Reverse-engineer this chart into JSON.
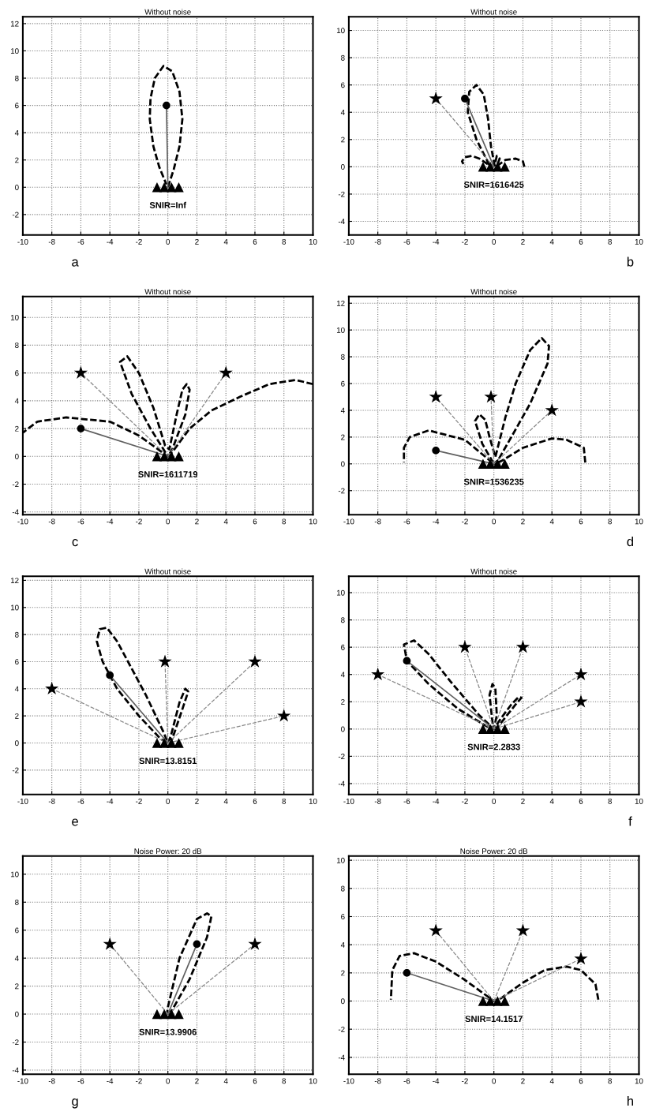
{
  "chart_data": [
    {
      "type": "line",
      "title": "Without noise",
      "annotations": [
        "SNIR=Inf",
        "a"
      ],
      "grid": true,
      "xlim": [
        -10,
        10
      ],
      "ylim": [
        -3.5,
        12.5
      ],
      "xticks": [
        -10,
        -8,
        -6,
        -4,
        -2,
        0,
        2,
        4,
        6,
        8,
        10
      ],
      "yticks": [
        -2,
        0,
        2,
        4,
        6,
        8,
        10,
        12
      ],
      "series": [
        {
          "type": "line",
          "line_style": "dashed",
          "color": "#000000",
          "x": [
            0,
            0.4,
            0.8,
            1.0,
            0.8,
            0.3,
            -0.3,
            -0.9,
            -1.2,
            -1.25,
            -1.0,
            -0.6,
            -0.1
          ],
          "values": [
            0,
            1.3,
            3,
            5,
            7,
            8.5,
            8.9,
            8,
            6.5,
            5,
            3,
            1.5,
            0.2
          ]
        },
        {
          "type": "line",
          "line_style": "solid",
          "color": "#606060",
          "x": [
            0,
            -0.1
          ],
          "values": [
            0,
            6
          ]
        },
        {
          "type": "scatter",
          "marker": "circle",
          "color": "#000000",
          "x": [
            -0.1
          ],
          "values": [
            6
          ]
        },
        {
          "type": "scatter",
          "marker": "triangle",
          "color": "#000000",
          "x": [
            -0.75,
            -0.25,
            0.25,
            0.75
          ],
          "values": [
            0,
            0,
            0,
            0
          ]
        }
      ]
    },
    {
      "type": "line",
      "title": "Without noise",
      "annotations": [
        "SNIR=1616425",
        "b"
      ],
      "grid": true,
      "xlim": [
        -10,
        10
      ],
      "ylim": [
        -5,
        11
      ],
      "xticks": [
        -10,
        -8,
        -6,
        -4,
        -2,
        0,
        2,
        4,
        6,
        8,
        10
      ],
      "yticks": [
        -4,
        -2,
        0,
        2,
        4,
        6,
        8,
        10
      ],
      "series": [
        {
          "type": "line",
          "line_style": "dashed",
          "color": "#000000",
          "x": [
            2.1,
            2.0,
            1.5,
            0.8,
            0.2,
            0.4,
            0.2,
            0.05,
            -0.2,
            -0.4,
            -0.7,
            -1.2,
            -1.7,
            -1.8,
            -1.2,
            -0.3,
            -1.0,
            -1.5,
            -2.0,
            -2.2,
            -2.1
          ],
          "values": [
            0,
            0.4,
            0.6,
            0.5,
            0.05,
            0.6,
            0.8,
            0.1,
            1.5,
            3.5,
            5.3,
            6,
            5.5,
            4,
            2,
            0.1,
            0.6,
            0.8,
            0.7,
            0.4,
            0.2
          ]
        },
        {
          "type": "line",
          "line_style": "dashed",
          "color": "#888888",
          "x": [
            0,
            -4
          ],
          "values": [
            0,
            5
          ]
        },
        {
          "type": "line",
          "line_style": "solid",
          "color": "#606060",
          "x": [
            0,
            -2
          ],
          "values": [
            0,
            5
          ]
        },
        {
          "type": "scatter",
          "marker": "star",
          "color": "#000000",
          "x": [
            -4
          ],
          "values": [
            5
          ]
        },
        {
          "type": "scatter",
          "marker": "circle",
          "color": "#000000",
          "x": [
            -2
          ],
          "values": [
            5
          ]
        },
        {
          "type": "scatter",
          "marker": "triangle",
          "color": "#000000",
          "x": [
            -0.75,
            -0.25,
            0.25,
            0.75
          ],
          "values": [
            0,
            0,
            0,
            0
          ]
        }
      ]
    },
    {
      "type": "line",
      "title": "Without noise",
      "annotations": [
        "SNIR=1611719",
        "c"
      ],
      "grid": true,
      "xlim": [
        -10,
        10
      ],
      "ylim": [
        -4.2,
        11.5
      ],
      "xticks": [
        -10,
        -8,
        -6,
        -4,
        -2,
        0,
        2,
        4,
        6,
        8,
        10
      ],
      "yticks": [
        -4,
        -2,
        0,
        2,
        4,
        6,
        8,
        10
      ],
      "series": [
        {
          "type": "line",
          "line_style": "dashed",
          "color": "#000000",
          "x": [
            10,
            8.8,
            7,
            5,
            3,
            1.5,
            0.3,
            0,
            0.3,
            1.2,
            1.5,
            1.3,
            1.0,
            0.6,
            0.1,
            -0.2,
            -1,
            -2,
            -2.8,
            -3.3,
            -2.5,
            -1.2,
            0,
            -2,
            -4,
            -7,
            -9,
            -10
          ],
          "values": [
            5.2,
            5.5,
            5.2,
            4.3,
            3.3,
            2,
            0.3,
            0,
            0.5,
            3,
            4.8,
            5.2,
            4.8,
            3,
            0.5,
            0.8,
            3.5,
            6,
            7.2,
            6.8,
            4.5,
            2,
            0,
            1.5,
            2.5,
            2.8,
            2.5,
            1.7
          ]
        },
        {
          "type": "line",
          "line_style": "dashed",
          "color": "#888888",
          "x": [
            0,
            -6,
            null,
            0,
            4
          ],
          "values": [
            0,
            6,
            null,
            0,
            6
          ]
        },
        {
          "type": "line",
          "line_style": "solid",
          "color": "#606060",
          "x": [
            0,
            -6
          ],
          "values": [
            0,
            2
          ]
        },
        {
          "type": "scatter",
          "marker": "star",
          "color": "#000000",
          "x": [
            -6,
            4
          ],
          "values": [
            6,
            6
          ]
        },
        {
          "type": "scatter",
          "marker": "circle",
          "color": "#000000",
          "x": [
            -6
          ],
          "values": [
            2
          ]
        },
        {
          "type": "scatter",
          "marker": "triangle",
          "color": "#000000",
          "x": [
            -0.75,
            -0.25,
            0.25,
            0.75
          ],
          "values": [
            0,
            0,
            0,
            0
          ]
        }
      ]
    },
    {
      "type": "line",
      "title": "Without noise",
      "annotations": [
        "SNIR=1536235",
        "d"
      ],
      "grid": true,
      "xlim": [
        -10,
        10
      ],
      "ylim": [
        -3.8,
        12.5
      ],
      "xticks": [
        -10,
        -8,
        -6,
        -4,
        -2,
        0,
        2,
        4,
        6,
        8,
        10
      ],
      "yticks": [
        -2,
        0,
        2,
        4,
        6,
        8,
        10,
        12
      ],
      "series": [
        {
          "type": "line",
          "line_style": "dashed",
          "color": "#000000",
          "x": [
            6.3,
            6.2,
            5,
            4,
            2,
            0.5,
            0,
            0.3,
            1.2,
            2.5,
            3.7,
            3.8,
            3.3,
            2.5,
            1.5,
            0.8,
            0.1,
            -0.3,
            -0.6,
            -1,
            -1.3,
            -0.8,
            0,
            -2,
            -4.5,
            -5.8,
            -6.2,
            -6.2
          ],
          "values": [
            0.1,
            1.2,
            1.8,
            1.9,
            1.2,
            0.2,
            0,
            0.3,
            2,
            4.5,
            7.5,
            8.8,
            9.4,
            8.5,
            6,
            3.5,
            0.5,
            2,
            3.3,
            3.7,
            3.2,
            1.5,
            0,
            1.8,
            2.5,
            2,
            1.2,
            0.1
          ]
        },
        {
          "type": "line",
          "line_style": "dashed",
          "color": "#888888",
          "x": [
            0,
            -4,
            null,
            0,
            -0.2,
            null,
            0,
            4
          ],
          "values": [
            0,
            5,
            null,
            0,
            5,
            null,
            0,
            4
          ]
        },
        {
          "type": "line",
          "line_style": "solid",
          "color": "#606060",
          "x": [
            0,
            -4
          ],
          "values": [
            0,
            1
          ]
        },
        {
          "type": "scatter",
          "marker": "star",
          "color": "#000000",
          "x": [
            -4,
            -0.2,
            4
          ],
          "values": [
            5,
            5,
            4
          ]
        },
        {
          "type": "scatter",
          "marker": "circle",
          "color": "#000000",
          "x": [
            -4
          ],
          "values": [
            1
          ]
        },
        {
          "type": "scatter",
          "marker": "triangle",
          "color": "#000000",
          "x": [
            -0.75,
            -0.25,
            0.25,
            0.75
          ],
          "values": [
            0,
            0,
            0,
            0
          ]
        }
      ]
    },
    {
      "type": "line",
      "title": "Without noise",
      "annotations": [
        "SNIR=13.8151",
        "e"
      ],
      "grid": true,
      "xlim": [
        -10,
        10
      ],
      "ylim": [
        -3.8,
        12.3
      ],
      "xticks": [
        -10,
        -8,
        -6,
        -4,
        -2,
        0,
        2,
        4,
        6,
        8,
        10
      ],
      "yticks": [
        -2,
        0,
        2,
        4,
        6,
        8,
        10,
        12
      ],
      "series": [
        {
          "type": "line",
          "line_style": "dashed",
          "color": "#000000",
          "x": [
            0,
            0.3,
            1,
            1.4,
            1.2,
            0.8,
            0.2,
            0,
            -0.3,
            -1.5,
            -2.5,
            -3.5,
            -4.2,
            -4.7,
            -4.9,
            -4.5,
            -3.5,
            -2,
            -0.5,
            -0.1
          ],
          "values": [
            0,
            0.3,
            2.5,
            3.8,
            4,
            3,
            0.5,
            0,
            0.8,
            3.5,
            5.5,
            7.5,
            8.5,
            8.4,
            7.5,
            6,
            4,
            2,
            0.3,
            0.05
          ]
        },
        {
          "type": "line",
          "line_style": "dashed",
          "color": "#888888",
          "x": [
            0,
            -8,
            null,
            0,
            -0.2,
            null,
            0,
            6,
            null,
            0,
            8
          ],
          "values": [
            0,
            4,
            null,
            0,
            6,
            null,
            0,
            6,
            null,
            0,
            2
          ]
        },
        {
          "type": "line",
          "line_style": "solid",
          "color": "#606060",
          "x": [
            0,
            -4
          ],
          "values": [
            0,
            5
          ]
        },
        {
          "type": "scatter",
          "marker": "star",
          "color": "#000000",
          "x": [
            -8,
            -0.2,
            6,
            8
          ],
          "values": [
            4,
            6,
            6,
            2
          ]
        },
        {
          "type": "scatter",
          "marker": "circle",
          "color": "#000000",
          "x": [
            -4
          ],
          "values": [
            5
          ]
        },
        {
          "type": "scatter",
          "marker": "triangle",
          "color": "#000000",
          "x": [
            -0.75,
            -0.25,
            0.25,
            0.75
          ],
          "values": [
            0,
            0,
            0,
            0
          ]
        }
      ]
    },
    {
      "type": "line",
      "title": "Without noise",
      "annotations": [
        "SNIR=2.2833",
        "f"
      ],
      "grid": true,
      "xlim": [
        -10,
        10
      ],
      "ylim": [
        -4.8,
        11.2
      ],
      "xticks": [
        -10,
        -8,
        -6,
        -4,
        -2,
        0,
        2,
        4,
        6,
        8,
        10
      ],
      "yticks": [
        -4,
        -2,
        0,
        2,
        4,
        6,
        8,
        10
      ],
      "series": [
        {
          "type": "line",
          "line_style": "dashed",
          "color": "#000000",
          "x": [
            0,
            0.3,
            1.5,
            1.9,
            1.7,
            1.2,
            0.5,
            0,
            0.2,
            0.1,
            -0.1,
            -0.3,
            -0.1,
            0,
            -1,
            -3,
            -4.5,
            -5.5,
            -6.2,
            -6,
            -4.5,
            -2.5,
            -0.5,
            -0.1
          ],
          "values": [
            0,
            0.2,
            1.8,
            2.3,
            2.35,
            1.8,
            0.8,
            0,
            1,
            3,
            3.3,
            2.5,
            0.5,
            0,
            1,
            3.5,
            5.5,
            6.5,
            6.2,
            5,
            3.3,
            1.5,
            0.2,
            0.05
          ]
        },
        {
          "type": "line",
          "line_style": "dashed",
          "color": "#888888",
          "x": [
            0,
            -8,
            null,
            0,
            -2,
            null,
            0,
            2,
            null,
            0,
            6
          ],
          "values": [
            0,
            4,
            null,
            0,
            6,
            null,
            0,
            6,
            null,
            0,
            4
          ]
        },
        {
          "type": "line",
          "line_style": "dashed",
          "color": "#888888",
          "x": [
            0,
            6
          ],
          "values": [
            0,
            2
          ]
        },
        {
          "type": "line",
          "line_style": "solid",
          "color": "#606060",
          "x": [
            0,
            -6
          ],
          "values": [
            0,
            5
          ]
        },
        {
          "type": "scatter",
          "marker": "star",
          "color": "#000000",
          "x": [
            -8,
            -2,
            2,
            6,
            6
          ],
          "values": [
            4,
            6,
            6,
            4,
            2
          ]
        },
        {
          "type": "scatter",
          "marker": "circle",
          "color": "#000000",
          "x": [
            -6
          ],
          "values": [
            5
          ]
        },
        {
          "type": "scatter",
          "marker": "triangle",
          "color": "#000000",
          "x": [
            -0.75,
            -0.25,
            0.25,
            0.75
          ],
          "values": [
            0,
            0,
            0,
            0
          ]
        }
      ]
    },
    {
      "type": "line",
      "title": "Noise Power: 20 dB",
      "annotations": [
        "SNIR=13.9906",
        "g"
      ],
      "grid": true,
      "xlim": [
        -10,
        10
      ],
      "ylim": [
        -4.3,
        11.3
      ],
      "xticks": [
        -10,
        -8,
        -6,
        -4,
        -2,
        0,
        2,
        4,
        6,
        8,
        10
      ],
      "yticks": [
        -4,
        -2,
        0,
        2,
        4,
        6,
        8,
        10
      ],
      "series": [
        {
          "type": "line",
          "line_style": "dashed",
          "color": "#000000",
          "x": [
            0,
            0.3,
            1.5,
            2.7,
            3,
            2.7,
            2,
            0.8,
            0,
            -0.05
          ],
          "values": [
            0,
            0.3,
            2.5,
            5.5,
            7,
            7.2,
            6.8,
            4,
            0.5,
            0.1
          ]
        },
        {
          "type": "line",
          "line_style": "dashed",
          "color": "#888888",
          "x": [
            0,
            -4,
            null,
            0,
            6
          ],
          "values": [
            0,
            5,
            null,
            0,
            5
          ]
        },
        {
          "type": "line",
          "line_style": "solid",
          "color": "#606060",
          "x": [
            0,
            2
          ],
          "values": [
            0,
            5
          ]
        },
        {
          "type": "scatter",
          "marker": "star",
          "color": "#000000",
          "x": [
            -4,
            6
          ],
          "values": [
            5,
            5
          ]
        },
        {
          "type": "scatter",
          "marker": "circle",
          "color": "#000000",
          "x": [
            2
          ],
          "values": [
            5
          ]
        },
        {
          "type": "scatter",
          "marker": "triangle",
          "color": "#000000",
          "x": [
            -0.75,
            -0.25,
            0.25,
            0.75
          ],
          "values": [
            0,
            0,
            0,
            0
          ]
        }
      ]
    },
    {
      "type": "line",
      "title": "Noise Power: 20 dB",
      "annotations": [
        "SNIR=14.1517",
        "h"
      ],
      "grid": true,
      "xlim": [
        -10,
        10
      ],
      "ylim": [
        -5.2,
        10.3
      ],
      "xticks": [
        -10,
        -8,
        -6,
        -4,
        -2,
        0,
        2,
        4,
        6,
        8,
        10
      ],
      "yticks": [
        -4,
        -2,
        0,
        2,
        4,
        6,
        8,
        10
      ],
      "series": [
        {
          "type": "line",
          "line_style": "dashed",
          "color": "#000000",
          "x": [
            7.2,
            7,
            6,
            5,
            3.5,
            2,
            0.5,
            0,
            -2,
            -4,
            -5.5,
            -6.5,
            -7,
            -7.1
          ],
          "values": [
            0.1,
            1.2,
            2.2,
            2.45,
            2.2,
            1.3,
            0.2,
            0,
            1.5,
            2.8,
            3.4,
            3.2,
            2.2,
            0.1
          ]
        },
        {
          "type": "line",
          "line_style": "dashed",
          "color": "#888888",
          "x": [
            0,
            -4,
            null,
            0,
            2,
            null,
            0,
            6
          ],
          "values": [
            0,
            5,
            null,
            0,
            5,
            null,
            0,
            3
          ]
        },
        {
          "type": "line",
          "line_style": "solid",
          "color": "#606060",
          "x": [
            0,
            -6
          ],
          "values": [
            0,
            2
          ]
        },
        {
          "type": "scatter",
          "marker": "star",
          "color": "#000000",
          "x": [
            -4,
            2,
            6
          ],
          "values": [
            5,
            5,
            3
          ]
        },
        {
          "type": "scatter",
          "marker": "circle",
          "color": "#000000",
          "x": [
            -6
          ],
          "values": [
            2
          ]
        },
        {
          "type": "scatter",
          "marker": "triangle",
          "color": "#000000",
          "x": [
            -0.75,
            -0.25,
            0.25,
            0.75
          ],
          "values": [
            0,
            0,
            0,
            0
          ]
        }
      ]
    }
  ]
}
